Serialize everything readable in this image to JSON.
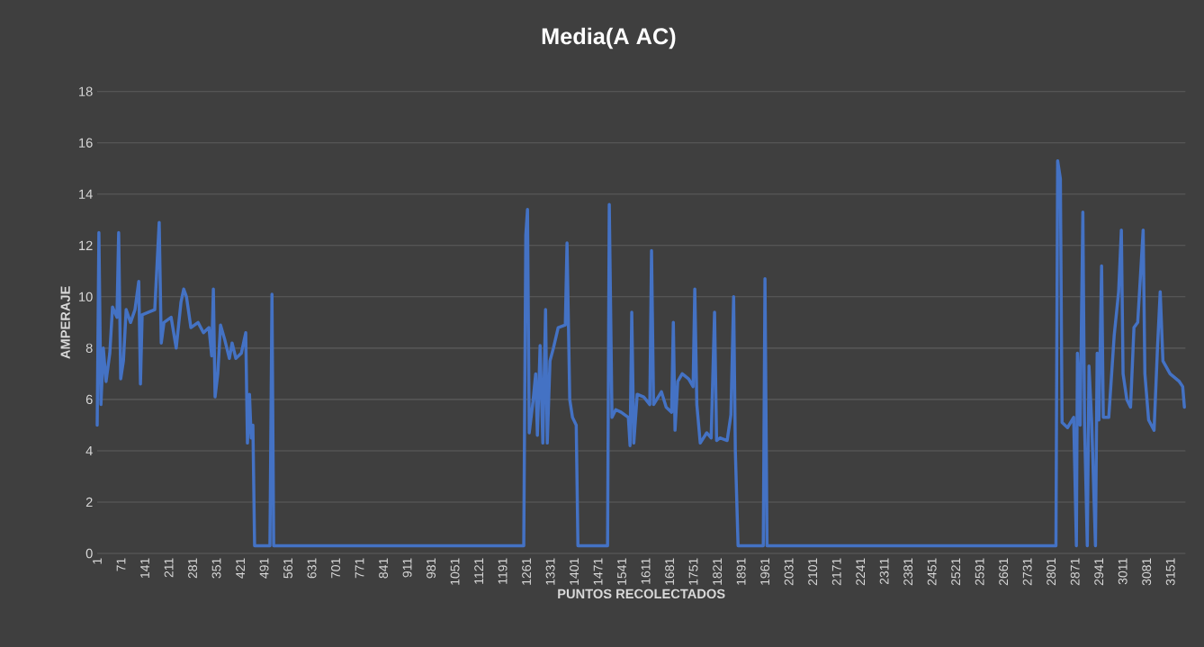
{
  "chart_data": {
    "type": "line",
    "title": "Media(A AC)",
    "xlabel": "PUNTOS RECOLECTADOS",
    "ylabel": "AMPERAJE",
    "x": [
      1,
      6,
      12,
      19,
      27,
      38,
      46,
      59,
      64,
      70,
      78,
      86,
      99,
      112,
      123,
      128,
      133,
      152,
      170,
      183,
      189,
      197,
      218,
      233,
      247,
      255,
      263,
      276,
      297,
      313,
      329,
      337,
      342,
      347,
      355,
      363,
      376,
      389,
      397,
      408,
      424,
      437,
      442,
      448,
      453,
      458,
      463,
      508,
      514,
      519,
      1253,
      1259,
      1264,
      1269,
      1280,
      1288,
      1293,
      1301,
      1309,
      1317,
      1322,
      1330,
      1340,
      1354,
      1375,
      1380,
      1388,
      1396,
      1407,
      1412,
      1499,
      1504,
      1512,
      1523,
      1539,
      1560,
      1565,
      1570,
      1576,
      1586,
      1605,
      1623,
      1628,
      1634,
      1657,
      1671,
      1687,
      1692,
      1697,
      1705,
      1718,
      1737,
      1750,
      1755,
      1761,
      1771,
      1790,
      1803,
      1813,
      1819,
      1829,
      1850,
      1861,
      1869,
      1874,
      1882,
      1956,
      1961,
      1967,
      2815,
      2820,
      2828,
      2833,
      2849,
      2867,
      2875,
      2878,
      2886,
      2894,
      2899,
      2907,
      2912,
      2920,
      2931,
      2936,
      2941,
      2949,
      2954,
      2970,
      2986,
      2999,
      3007,
      3012,
      3023,
      3034,
      3044,
      3055,
      3071,
      3076,
      3087,
      3103,
      3113,
      3121,
      3129,
      3150,
      3177,
      3187,
      3192
    ],
    "series": [
      {
        "color": "#4472c4",
        "values": [
          5.0,
          12.5,
          5.8,
          8.0,
          6.7,
          7.8,
          9.6,
          9.2,
          12.5,
          6.8,
          7.5,
          9.5,
          9.0,
          9.5,
          10.6,
          6.6,
          9.3,
          9.4,
          9.5,
          12.9,
          8.2,
          9.0,
          9.2,
          8.0,
          9.8,
          10.3,
          10.0,
          8.8,
          9.0,
          8.6,
          8.8,
          7.7,
          10.3,
          6.1,
          7.0,
          8.9,
          8.3,
          7.6,
          8.2,
          7.6,
          7.8,
          8.6,
          4.3,
          6.2,
          4.5,
          5.0,
          0.3,
          0.3,
          10.1,
          0.3,
          0.3,
          12.4,
          13.4,
          4.7,
          5.9,
          7.0,
          4.6,
          8.1,
          4.3,
          9.5,
          4.3,
          7.5,
          8.0,
          8.8,
          8.9,
          12.1,
          6.0,
          5.3,
          5.0,
          0.3,
          0.3,
          13.6,
          5.3,
          5.6,
          5.5,
          5.3,
          4.2,
          9.4,
          4.3,
          6.2,
          6.1,
          5.8,
          11.8,
          5.8,
          6.3,
          5.7,
          5.5,
          9.0,
          4.8,
          6.7,
          7.0,
          6.8,
          6.5,
          10.3,
          5.8,
          4.3,
          4.7,
          4.5,
          9.4,
          4.4,
          4.5,
          4.4,
          5.4,
          10.0,
          4.0,
          0.3,
          0.3,
          10.7,
          0.3,
          0.3,
          15.3,
          14.6,
          5.1,
          4.9,
          5.3,
          0.3,
          7.8,
          5.0,
          13.3,
          5.0,
          0.3,
          7.3,
          5.1,
          0.3,
          7.8,
          5.2,
          11.2,
          5.3,
          5.3,
          8.5,
          10.2,
          12.6,
          7.0,
          6.0,
          5.7,
          8.8,
          9.0,
          12.6,
          7.0,
          5.2,
          4.8,
          8.0,
          10.2,
          7.5,
          7.0,
          6.7,
          6.5,
          5.7
        ]
      }
    ],
    "xlim": [
      1,
      3195
    ],
    "xticks": [
      1,
      71,
      141,
      211,
      281,
      351,
      421,
      491,
      561,
      631,
      701,
      771,
      841,
      911,
      981,
      1051,
      1121,
      1191,
      1261,
      1331,
      1401,
      1471,
      1541,
      1611,
      1681,
      1751,
      1821,
      1891,
      1961,
      2031,
      2101,
      2171,
      2241,
      2311,
      2381,
      2451,
      2521,
      2591,
      2661,
      2731,
      2801,
      2871,
      2941,
      3011,
      3081,
      3151
    ],
    "ylim": [
      0,
      18
    ],
    "yticks": [
      0,
      2,
      4,
      6,
      8,
      10,
      12,
      14,
      16,
      18
    ],
    "grid": "y",
    "marker": "none",
    "line_style": "solid"
  }
}
